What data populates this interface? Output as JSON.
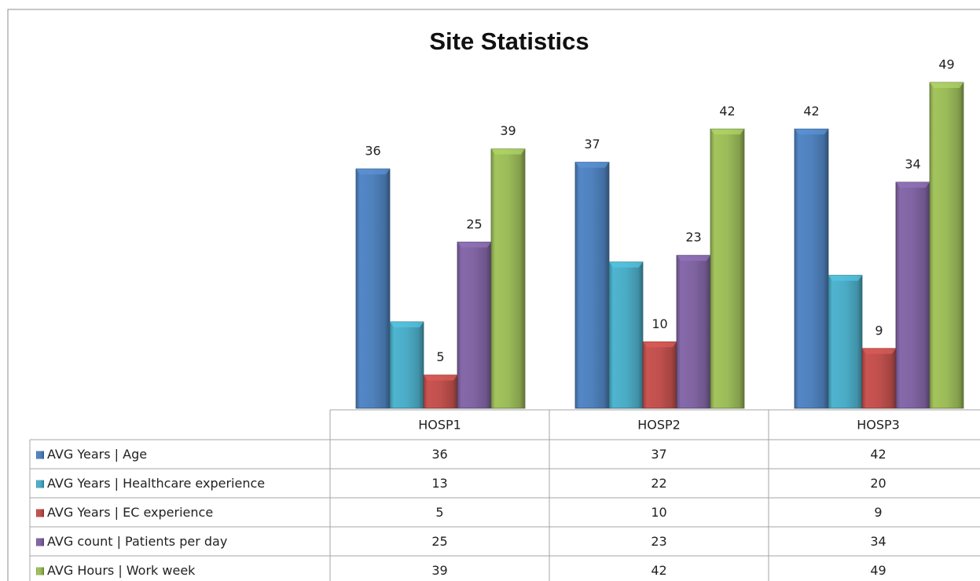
{
  "chart_data": {
    "type": "bar",
    "title": "Site Statistics",
    "categories": [
      "HOSP1",
      "HOSP2",
      "HOSP3"
    ],
    "series": [
      {
        "name": "AVG Years | Age",
        "color": "#4f81bd",
        "values": [
          36,
          37,
          42
        ],
        "labels": true
      },
      {
        "name": "AVG Years | Healthcare experience",
        "color": "#4bacc6",
        "values": [
          13,
          22,
          20
        ],
        "labels": false
      },
      {
        "name": "AVG Years | EC experience",
        "color": "#c0504d",
        "values": [
          5,
          10,
          9
        ],
        "labels": true
      },
      {
        "name": "AVG count | Patients per day",
        "color": "#8064a2",
        "values": [
          25,
          23,
          34
        ],
        "labels": true
      },
      {
        "name": "AVG Hours | Work week",
        "color": "#9bbb59",
        "values": [
          39,
          42,
          49
        ],
        "labels": true
      }
    ],
    "data_table": true
  }
}
